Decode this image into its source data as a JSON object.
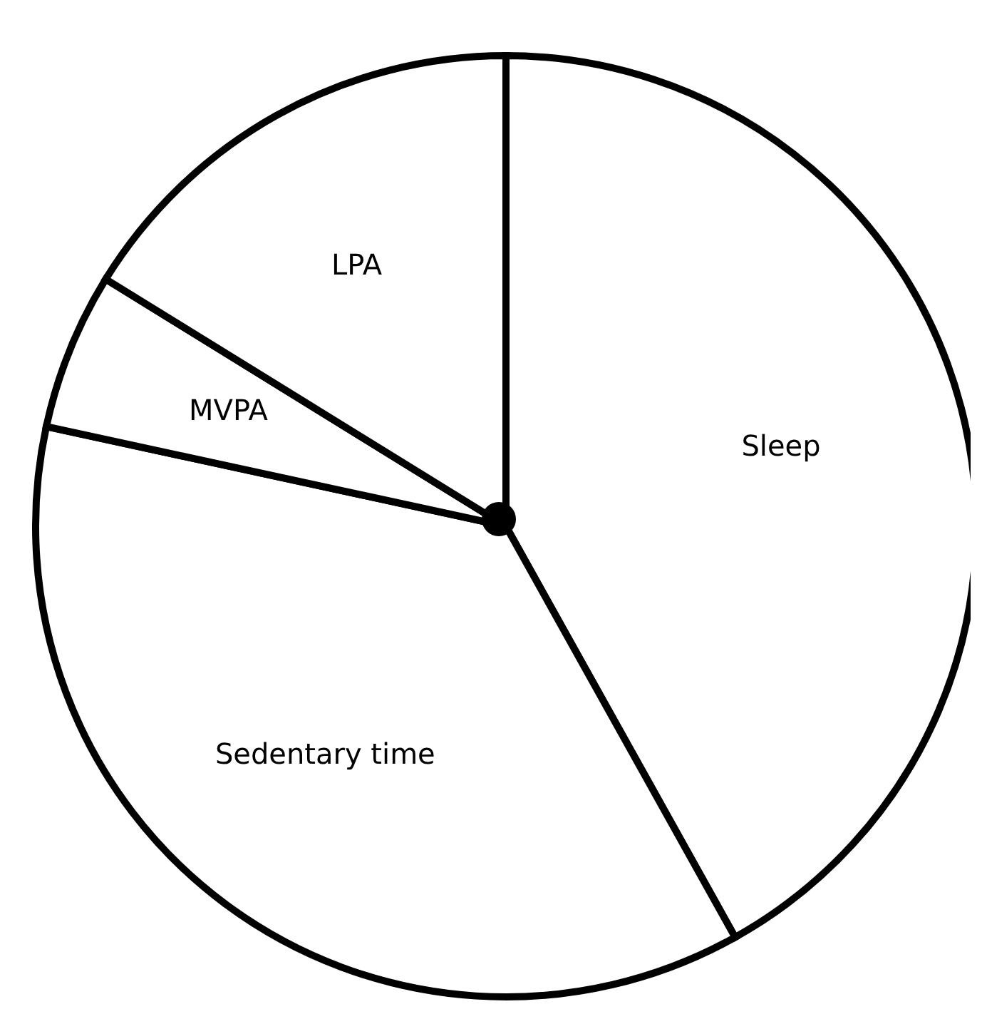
{
  "chart_data": {
    "type": "pie",
    "categories": [
      "Sleep",
      "Sedentary time",
      "MVPA",
      "LPA"
    ],
    "values": [
      41.9,
      36.5,
      5.4,
      16.2
    ],
    "colors": [
      "#ffffff",
      "#ffffff",
      "#ffffff",
      "#ffffff"
    ]
  }
}
